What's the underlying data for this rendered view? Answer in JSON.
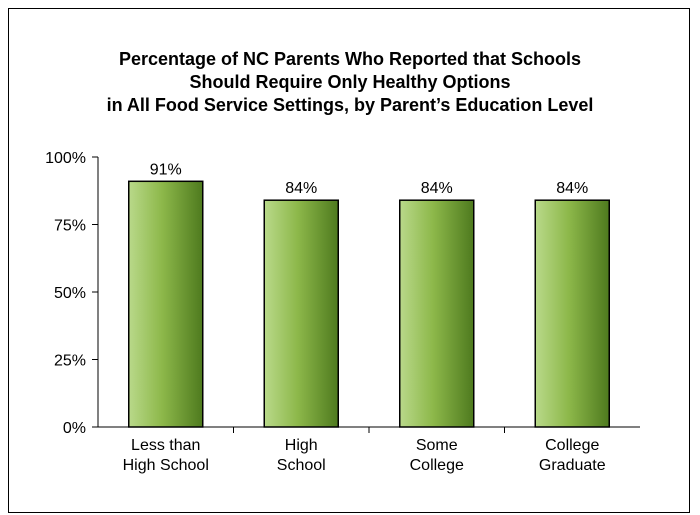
{
  "chart_data": {
    "type": "bar",
    "title_lines": [
      "Percentage of NC Parents Who Reported that Schools",
      "Should Require Only Healthy Options",
      "in All Food Service Settings, by Parent’s Education Level"
    ],
    "categories": [
      [
        "Less than",
        "High School"
      ],
      [
        "High",
        "School"
      ],
      [
        "Some",
        "College"
      ],
      [
        "College",
        "Graduate"
      ]
    ],
    "values": [
      91,
      84,
      84,
      84
    ],
    "data_labels": [
      "91%",
      "84%",
      "84%",
      "84%"
    ],
    "ylim": [
      0,
      100
    ],
    "yticks": [
      0,
      25,
      50,
      75,
      100
    ],
    "ytick_labels": [
      "0%",
      "25%",
      "50%",
      "75%",
      "100%"
    ],
    "xlabel": "",
    "ylabel": "",
    "grid": false,
    "legend": "none",
    "bar_color": "#8DB84A"
  }
}
